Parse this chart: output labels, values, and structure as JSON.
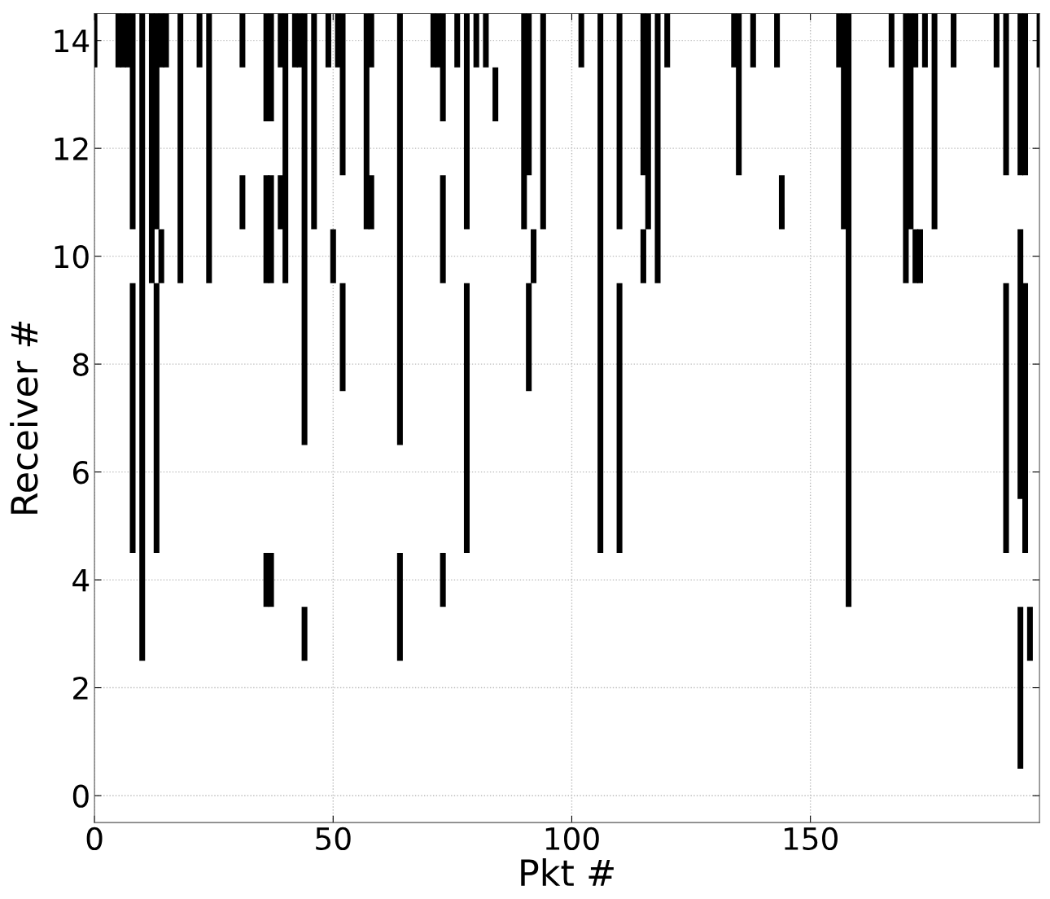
{
  "chart_data": {
    "type": "bar",
    "xlabel": "Pkt #",
    "ylabel": "Receiver #",
    "xlim": [
      0,
      198
    ],
    "xticks": [
      0,
      50,
      100,
      150
    ],
    "ylim": [
      -0.5,
      14.5
    ],
    "yticks": [
      0,
      2,
      4,
      6,
      8,
      10,
      12,
      14
    ],
    "grid": true,
    "series": [
      {
        "color": "#000000",
        "x": [
          0,
          5,
          6,
          7,
          8,
          10,
          12,
          13,
          14,
          15,
          18,
          22,
          24,
          31,
          36,
          37,
          39,
          40,
          42,
          43,
          44,
          46,
          49,
          50,
          51,
          52,
          57,
          58,
          64,
          71,
          72,
          73,
          76,
          78,
          80,
          82,
          84,
          90,
          91,
          92,
          94,
          102,
          106,
          110,
          115,
          116,
          118,
          120,
          134,
          135,
          138,
          143,
          144,
          156,
          157,
          158,
          167,
          170,
          171,
          172,
          173,
          174,
          176,
          180,
          189,
          191,
          194,
          195,
          196,
          198
        ],
        "base": [
          13.5,
          13.5,
          13.5,
          13.5,
          10.5,
          2.5,
          9.5,
          10.5,
          13.5,
          13.5,
          9.5,
          13.5,
          9.5,
          13.5,
          12.5,
          12.5,
          13.5,
          9.5,
          13.5,
          13.5,
          6.5,
          10.5,
          13.5,
          9.5,
          13.5,
          11.5,
          10.5,
          13.5,
          6.5,
          13.5,
          13.5,
          12.5,
          13.5,
          10.5,
          13.5,
          13.5,
          12.5,
          10.5,
          11.5,
          9.5,
          10.5,
          13.5,
          4.5,
          10.5,
          11.5,
          10.5,
          9.5,
          13.5,
          13.5,
          11.5,
          13.5,
          13.5,
          10.5,
          13.5,
          10.5,
          3.5,
          13.5,
          9.5,
          10.5,
          13.5,
          9.5,
          13.5,
          10.5,
          13.5,
          13.5,
          11.5,
          11.5,
          11.5,
          2.5,
          13.5
        ],
        "values": [
          1,
          1,
          1,
          1,
          4,
          12,
          5,
          4,
          1,
          1,
          5,
          1,
          5,
          1,
          2,
          2,
          1,
          5,
          1,
          1,
          8,
          4,
          1,
          1,
          1,
          3,
          4,
          1,
          8,
          1,
          1,
          2,
          1,
          4,
          1,
          1,
          1,
          4,
          3,
          1,
          4,
          1,
          10,
          4,
          3,
          4,
          5,
          1,
          1,
          3,
          1,
          1,
          1,
          1,
          4,
          11,
          1,
          5,
          4,
          1,
          1,
          1,
          4,
          1,
          1,
          3,
          3,
          3,
          1,
          1
        ]
      },
      {
        "color": "#000000",
        "x": [
          8,
          13,
          14,
          31,
          36,
          37,
          39,
          44,
          52,
          58,
          64,
          73,
          78,
          91,
          110,
          115,
          172,
          191,
          194,
          195
        ],
        "base": [
          4.5,
          4.5,
          9.5,
          10.5,
          9.5,
          9.5,
          10.5,
          2.5,
          7.5,
          10.5,
          2.5,
          9.5,
          4.5,
          7.5,
          4.5,
          9.5,
          9.5,
          4.5,
          5.5,
          4.5
        ],
        "values": [
          5,
          5,
          1,
          1,
          2,
          2,
          1,
          1,
          2,
          1,
          2,
          2,
          5,
          2,
          5,
          1,
          1,
          5,
          5,
          5
        ]
      },
      {
        "color": "#000000",
        "x": [
          36,
          37,
          73,
          194
        ],
        "base": [
          3.5,
          3.5,
          3.5,
          0.5
        ],
        "values": [
          1,
          1,
          1,
          3
        ]
      }
    ]
  }
}
